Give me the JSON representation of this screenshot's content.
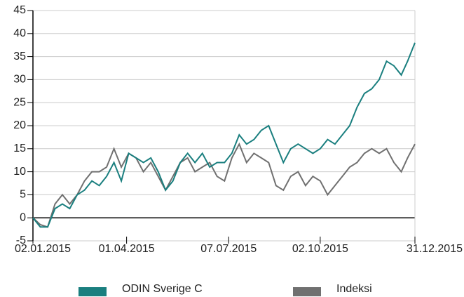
{
  "chart_data": {
    "type": "line",
    "x": [
      "2015-01-02",
      "2015-01-09",
      "2015-01-16",
      "2015-01-23",
      "2015-01-30",
      "2015-02-06",
      "2015-02-13",
      "2015-02-20",
      "2015-02-27",
      "2015-03-06",
      "2015-03-13",
      "2015-03-20",
      "2015-03-27",
      "2015-04-03",
      "2015-04-10",
      "2015-04-17",
      "2015-04-24",
      "2015-05-01",
      "2015-05-08",
      "2015-05-15",
      "2015-05-22",
      "2015-05-29",
      "2015-06-05",
      "2015-06-12",
      "2015-06-19",
      "2015-06-26",
      "2015-07-03",
      "2015-07-10",
      "2015-07-17",
      "2015-07-24",
      "2015-07-31",
      "2015-08-07",
      "2015-08-14",
      "2015-08-21",
      "2015-08-28",
      "2015-09-04",
      "2015-09-11",
      "2015-09-18",
      "2015-09-25",
      "2015-10-02",
      "2015-10-09",
      "2015-10-16",
      "2015-10-23",
      "2015-10-30",
      "2015-11-06",
      "2015-11-13",
      "2015-11-20",
      "2015-11-27",
      "2015-12-04",
      "2015-12-11",
      "2015-12-18",
      "2015-12-24",
      "2015-12-31"
    ],
    "series": [
      {
        "name": "ODIN Sverige C",
        "color": "#1a7f7f",
        "values": [
          0,
          -2,
          -2,
          2,
          3,
          2,
          5,
          6,
          8,
          7,
          9,
          12,
          8,
          14,
          13,
          12,
          13,
          10,
          6,
          8,
          12,
          14,
          12,
          14,
          11,
          12,
          12,
          14,
          18,
          16,
          17,
          19,
          20,
          16,
          12,
          15,
          16,
          15,
          14,
          15,
          17,
          16,
          18,
          20,
          24,
          27,
          28,
          30,
          34,
          33,
          31,
          34,
          38
        ]
      },
      {
        "name": "Indeksi",
        "color": "#707070",
        "values": [
          0,
          -1.5,
          -2,
          3,
          5,
          3,
          5,
          8,
          10,
          10,
          11,
          15,
          11,
          14,
          13,
          10,
          12,
          9,
          6,
          9,
          12,
          13,
          10,
          11,
          12,
          9,
          8,
          13,
          16,
          12,
          14,
          13,
          12,
          7,
          6,
          9,
          10,
          7,
          9,
          8,
          5,
          7,
          9,
          11,
          12,
          14,
          15,
          14,
          15,
          12,
          10,
          13,
          16
        ]
      }
    ],
    "xlim": [
      "2015-01-02",
      "2015-12-31"
    ],
    "xticks": [
      {
        "value": "2015-01-02",
        "label": "02.01.2015"
      },
      {
        "value": "2015-04-01",
        "label": "01.04.2015"
      },
      {
        "value": "2015-07-07",
        "label": "07.07.2015"
      },
      {
        "value": "2015-10-02",
        "label": "02.10.2015"
      },
      {
        "value": "2015-12-31",
        "label": "31.12.2015"
      }
    ],
    "ylim": [
      -5,
      45
    ],
    "yticks": [
      -5,
      0,
      5,
      10,
      15,
      20,
      25,
      30,
      35,
      40,
      45
    ],
    "grid": true
  }
}
